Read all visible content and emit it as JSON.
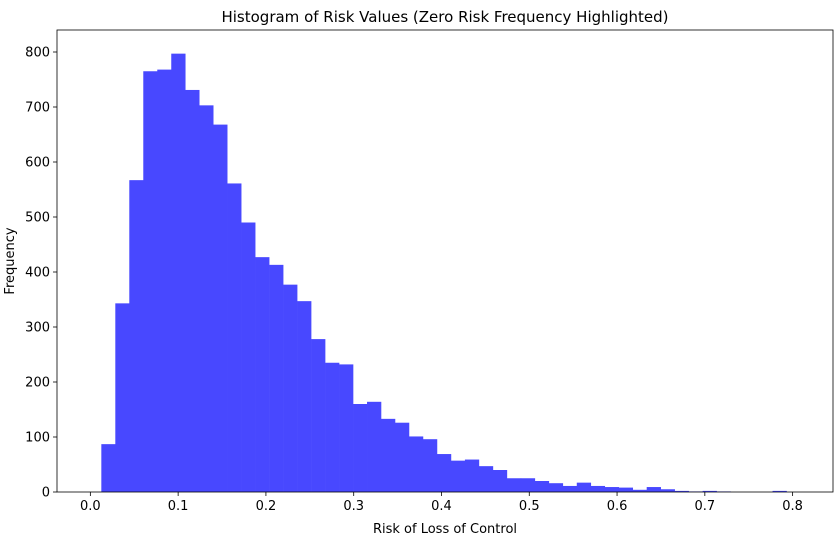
{
  "chart_data": {
    "type": "bar",
    "title": "Histogram of Risk Values (Zero Risk Frequency Highlighted)",
    "xlabel": "Risk of Loss of Control",
    "ylabel": "Frequency",
    "xlim": [
      -0.038,
      0.846
    ],
    "ylim": [
      0,
      840
    ],
    "x_ticks": [
      0.0,
      0.1,
      0.2,
      0.3,
      0.4,
      0.5,
      0.6,
      0.7,
      0.8
    ],
    "x_tick_labels": [
      "0.0",
      "0.1",
      "0.2",
      "0.3",
      "0.4",
      "0.5",
      "0.6",
      "0.7",
      "0.8"
    ],
    "y_ticks": [
      0,
      100,
      200,
      300,
      400,
      500,
      600,
      700,
      800
    ],
    "y_tick_labels": [
      "0",
      "100",
      "200",
      "300",
      "400",
      "500",
      "600",
      "700",
      "800"
    ],
    "bar_color": "#4848ff",
    "bin_start": 0.0125,
    "bin_width": 0.01593,
    "values": [
      87,
      343,
      567,
      765,
      768,
      797,
      731,
      703,
      668,
      561,
      490,
      427,
      413,
      377,
      347,
      278,
      235,
      232,
      160,
      164,
      133,
      126,
      101,
      96,
      69,
      57,
      59,
      47,
      40,
      25,
      25,
      20,
      16,
      11,
      17,
      11,
      9,
      8,
      4,
      9,
      5,
      2,
      1,
      2,
      1,
      0,
      0,
      0,
      2
    ],
    "grid": false,
    "legend": "none"
  }
}
